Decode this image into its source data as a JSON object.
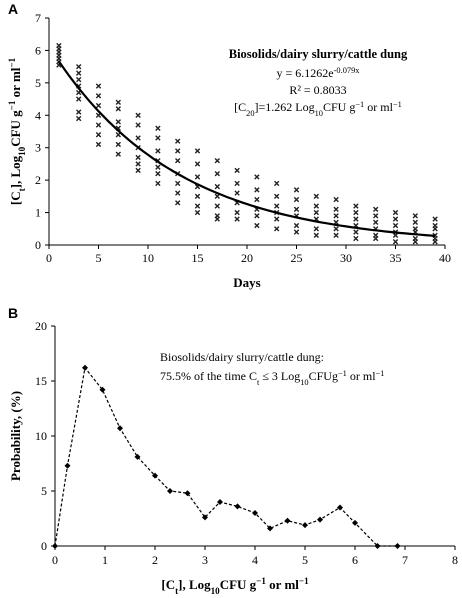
{
  "chart_data": [
    {
      "type": "scatter",
      "panel": "A",
      "xlabel": "Days",
      "ylabel_parts": [
        "[C",
        "t",
        "], Log",
        "10",
        "CFU g",
        "−1",
        " or ml",
        "−1"
      ],
      "xlim": [
        0,
        40
      ],
      "ylim": [
        0,
        7
      ],
      "xticks": [
        0,
        5,
        10,
        15,
        20,
        25,
        30,
        35,
        40
      ],
      "yticks": [
        0,
        1,
        2,
        3,
        4,
        5,
        6,
        7
      ],
      "annotation": {
        "title": "Biosolids/dairy slurry/cattle dung",
        "equation_base": "y = 6.1262e",
        "equation_exp": "-0.079x",
        "r2": "R² = 0.8033",
        "c20_parts": [
          "[C",
          "20",
          "]=1.262 Log",
          "10",
          "CFU g",
          "−1",
          " or ml",
          "−1"
        ]
      },
      "series": [
        {
          "x": [
            1,
            3,
            5,
            7,
            9,
            11,
            13,
            15,
            17,
            19,
            21,
            23,
            25,
            27,
            29,
            31,
            33,
            35,
            37,
            39
          ],
          "y_values": [
            [
              5.55,
              5.65,
              5.75,
              5.85,
              5.95,
              6.05,
              6.15
            ],
            [
              4.5,
              4.7,
              4.9,
              5.1,
              5.3,
              5.5,
              3.9,
              4.1
            ],
            [
              3.4,
              3.7,
              4.0,
              4.3,
              4.6,
              4.9,
              3.1
            ],
            [
              2.8,
              3.1,
              3.4,
              3.8,
              4.2,
              4.4,
              3.6
            ],
            [
              2.3,
              2.7,
              3.0,
              3.3,
              3.7,
              4.0,
              2.5
            ],
            [
              1.9,
              2.2,
              2.6,
              2.9,
              3.3,
              3.6,
              2.4
            ],
            [
              1.6,
              1.9,
              2.2,
              2.6,
              2.9,
              3.2,
              1.3
            ],
            [
              1.2,
              1.5,
              1.8,
              2.1,
              2.5,
              2.9,
              1.0
            ],
            [
              0.9,
              1.2,
              1.5,
              1.8,
              2.2,
              2.6,
              0.8
            ],
            [
              0.8,
              1.0,
              1.3,
              1.6,
              1.9,
              2.3
            ],
            [
              0.6,
              0.9,
              1.1,
              1.4,
              1.7,
              2.1
            ],
            [
              0.5,
              0.8,
              1.0,
              1.2,
              1.5,
              1.9
            ],
            [
              0.4,
              0.6,
              0.9,
              1.1,
              1.4,
              1.7
            ],
            [
              0.3,
              0.5,
              0.8,
              1.0,
              1.2,
              1.5
            ],
            [
              0.3,
              0.5,
              0.7,
              0.9,
              1.1,
              1.4
            ],
            [
              0.2,
              0.4,
              0.6,
              0.8,
              1.0,
              1.2
            ],
            [
              0.2,
              0.3,
              0.5,
              0.7,
              0.9,
              1.1
            ],
            [
              0.1,
              0.3,
              0.4,
              0.6,
              0.8,
              1.0
            ],
            [
              0.1,
              0.2,
              0.4,
              0.5,
              0.7,
              0.9
            ],
            [
              0.1,
              0.2,
              0.3,
              0.5,
              0.6,
              0.8
            ]
          ]
        }
      ],
      "fit": {
        "a": 6.1262,
        "b": -0.079,
        "x_range": [
          1,
          39
        ]
      }
    },
    {
      "type": "line",
      "panel": "B",
      "ylabel": "Probability, (%)",
      "xlabel_parts": [
        "[C",
        "t",
        "], Log",
        "10",
        "CFU g",
        "−1",
        " or ml",
        "−1"
      ],
      "xlim": [
        0,
        8
      ],
      "ylim": [
        0,
        20
      ],
      "xticks": [
        0,
        1,
        2,
        3,
        4,
        5,
        6,
        7,
        8
      ],
      "yticks": [
        0,
        5,
        10,
        15,
        20
      ],
      "annotation": {
        "line1": "Biosolids/dairy slurry/cattle dung:",
        "line2_parts": [
          "75.5% of  the time C",
          "t",
          " ≤ 3 Log",
          "10",
          "CFUg",
          "−1",
          " or ml",
          "−1"
        ]
      },
      "series": [
        {
          "x": [
            0,
            0.25,
            0.6,
            0.95,
            1.3,
            1.65,
            2.0,
            2.3,
            2.65,
            3.0,
            3.3,
            3.65,
            4.0,
            4.3,
            4.65,
            5.0,
            5.3,
            5.7,
            6.0,
            6.45,
            6.85
          ],
          "y": [
            0,
            7.3,
            16.2,
            14.2,
            10.7,
            8.1,
            6.4,
            5.0,
            4.8,
            2.6,
            4.0,
            3.6,
            3.0,
            1.6,
            2.3,
            1.9,
            2.4,
            3.5,
            2.1,
            0.0,
            0.0
          ]
        }
      ]
    }
  ]
}
